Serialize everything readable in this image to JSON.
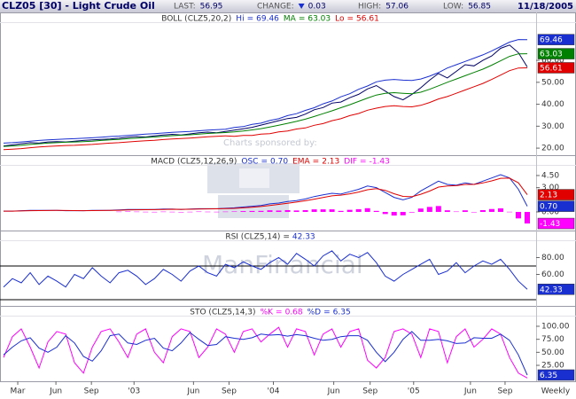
{
  "header": {
    "title": "CLZ05 [30] - Light Crude Oil",
    "fields": [
      {
        "label": "LAST:",
        "value": "56.95"
      },
      {
        "label": "CHANGE:",
        "value": "0.03",
        "direction": "down"
      },
      {
        "label": "HIGH:",
        "value": "57.06"
      },
      {
        "label": "LOW:",
        "value": "56.85"
      }
    ],
    "date": "11/18/2005"
  },
  "watermark": {
    "caption": "Charts sponsored by:",
    "brand": "ManFinancial"
  },
  "legend_separator": "=",
  "x_axis": {
    "xlim": [
      -0.2,
      59.8
    ],
    "label": "Weekly",
    "xticks": [
      {
        "value": 1.6,
        "label": "Mar"
      },
      {
        "value": 5.9,
        "label": "Jun"
      },
      {
        "value": 9.9,
        "label": "Sep"
      },
      {
        "value": 14.7,
        "label": "'03"
      },
      {
        "value": 21.4,
        "label": "Jun"
      },
      {
        "value": 25.4,
        "label": "Sep"
      },
      {
        "value": 30.4,
        "label": "'04"
      },
      {
        "value": 37.2,
        "label": "Jun"
      },
      {
        "value": 41.3,
        "label": "Sep"
      },
      {
        "value": 46.2,
        "label": "'05"
      },
      {
        "value": 52.6,
        "label": "Jun"
      },
      {
        "value": 56.5,
        "label": "Sep"
      }
    ]
  },
  "chart_data": [
    {
      "type": "line",
      "title": "BOLL (CLZ5,20,2)",
      "ylim": [
        16.8,
        77
      ],
      "yticks": [
        {
          "value": 20,
          "label": "20.00"
        },
        {
          "value": 30,
          "label": "30.00"
        },
        {
          "value": 40,
          "label": "40.00"
        },
        {
          "value": 50,
          "label": "50.00"
        },
        {
          "value": 60,
          "label": "60.00"
        }
      ],
      "series": [
        {
          "color": "#000066",
          "kind": "line",
          "values": [
            21.0,
            21.5,
            22.0,
            22.5,
            22.3,
            22.8,
            23.0,
            22.8,
            23.2,
            23.5,
            23.8,
            24.0,
            24.2,
            24.5,
            25.0,
            25.3,
            25.1,
            25.6,
            26.0,
            26.3,
            26.0,
            26.5,
            27.0,
            27.3,
            27.0,
            27.6,
            28.2,
            28.8,
            29.5,
            30.5,
            31.5,
            32.5,
            33.5,
            34.0,
            35.5,
            37.5,
            38.5,
            40.5,
            41.0,
            43.0,
            44.5,
            47.0,
            48.5,
            46.0,
            43.5,
            42.0,
            44.5,
            47.5,
            51.0,
            54.0,
            52.0,
            55.0,
            58.0,
            57.5,
            60.0,
            62.0,
            65.5,
            67.0,
            63.5,
            57.0
          ]
        },
        {
          "name": "Hi",
          "last_label": "69.46",
          "badge": true,
          "color": "#1a2fd0",
          "kind": "line",
          "values": [
            22.3,
            22.5,
            22.8,
            23.2,
            23.5,
            23.8,
            24.0,
            24.2,
            24.3,
            24.5,
            24.7,
            25.0,
            25.3,
            25.5,
            25.8,
            26.1,
            26.4,
            26.6,
            26.9,
            27.2,
            27.4,
            27.6,
            27.9,
            28.2,
            28.4,
            28.6,
            29.4,
            29.8,
            30.8,
            31.4,
            32.6,
            33.4,
            34.8,
            35.7,
            37.2,
            38.4,
            40.2,
            41.5,
            43.4,
            44.8,
            46.8,
            48.3,
            50.2,
            51.0,
            51.3,
            51.0,
            50.8,
            51.5,
            52.8,
            54.4,
            56.5,
            58.0,
            59.5,
            61.0,
            62.5,
            64.3,
            66.3,
            68.3,
            69.5,
            69.46
          ]
        },
        {
          "name": "MA",
          "last_label": "63.03",
          "badge": true,
          "color": "#008000",
          "kind": "line",
          "values": [
            20.8,
            21.0,
            21.3,
            21.7,
            22.0,
            22.3,
            22.5,
            22.7,
            22.8,
            23.0,
            23.2,
            23.5,
            23.8,
            24.0,
            24.3,
            24.6,
            24.9,
            25.1,
            25.4,
            25.7,
            25.9,
            26.1,
            26.4,
            26.7,
            26.9,
            27.1,
            27.4,
            27.8,
            28.3,
            28.9,
            29.6,
            30.4,
            31.3,
            32.2,
            33.2,
            34.4,
            35.7,
            37.0,
            38.4,
            39.8,
            41.3,
            42.8,
            44.2,
            45.0,
            45.3,
            45.0,
            44.8,
            45.5,
            46.8,
            48.4,
            50.0,
            51.5,
            53.0,
            54.5,
            56.0,
            57.8,
            59.8,
            61.8,
            63.0,
            63.03
          ]
        },
        {
          "name": "Lo",
          "last_label": "56.61",
          "badge": true,
          "color": "#e00000",
          "kind": "line",
          "values": [
            19.3,
            19.5,
            19.8,
            20.2,
            20.5,
            20.8,
            21.0,
            21.2,
            21.3,
            21.5,
            21.7,
            22.0,
            22.3,
            22.5,
            22.8,
            23.1,
            23.4,
            23.6,
            23.9,
            24.2,
            24.4,
            24.6,
            24.9,
            25.2,
            25.4,
            25.6,
            25.4,
            25.8,
            25.8,
            26.4,
            26.6,
            27.4,
            27.8,
            28.7,
            29.2,
            30.4,
            31.2,
            32.5,
            33.4,
            34.8,
            35.8,
            37.3,
            38.2,
            39.0,
            39.3,
            39.0,
            38.8,
            39.5,
            40.8,
            42.4,
            43.5,
            45.0,
            46.5,
            48.0,
            49.5,
            51.3,
            53.3,
            55.3,
            56.5,
            56.61
          ]
        }
      ]
    },
    {
      "type": "line",
      "title": "MACD (CLZ5,12,26,9)",
      "ylim": [
        -2.3,
        5.7
      ],
      "yticks": [
        {
          "value": 0,
          "label": "0.00"
        },
        {
          "value": 3,
          "label": "3.00"
        },
        {
          "value": 4.5,
          "label": "4.50"
        }
      ],
      "series": [
        {
          "name": "OSC",
          "last_label": "0.70",
          "badge": true,
          "color": "#1a2fd0",
          "kind": "line",
          "values": [
            0.1,
            0.1,
            0.15,
            0.2,
            0.2,
            0.2,
            0.2,
            0.15,
            0.15,
            0.15,
            0.2,
            0.2,
            0.2,
            0.25,
            0.3,
            0.3,
            0.3,
            0.3,
            0.35,
            0.35,
            0.3,
            0.35,
            0.4,
            0.4,
            0.4,
            0.45,
            0.5,
            0.6,
            0.7,
            0.8,
            1.0,
            1.1,
            1.3,
            1.4,
            1.6,
            1.9,
            2.1,
            2.3,
            2.2,
            2.5,
            2.8,
            3.2,
            3.0,
            2.4,
            1.8,
            1.5,
            1.8,
            2.6,
            3.2,
            3.8,
            3.4,
            3.3,
            3.6,
            3.4,
            3.8,
            4.2,
            4.6,
            4.2,
            2.8,
            0.7
          ]
        },
        {
          "name": "EMA",
          "last_label": "2.13",
          "badge": true,
          "color": "#e00000",
          "kind": "line",
          "values": [
            0.1,
            0.1,
            0.12,
            0.15,
            0.17,
            0.18,
            0.19,
            0.18,
            0.17,
            0.16,
            0.17,
            0.18,
            0.19,
            0.21,
            0.24,
            0.26,
            0.28,
            0.29,
            0.31,
            0.33,
            0.32,
            0.33,
            0.35,
            0.37,
            0.38,
            0.41,
            0.44,
            0.5,
            0.58,
            0.67,
            0.8,
            0.93,
            1.08,
            1.22,
            1.38,
            1.58,
            1.78,
            1.98,
            2.07,
            2.24,
            2.46,
            2.74,
            2.87,
            2.66,
            2.25,
            1.92,
            1.87,
            2.18,
            2.58,
            3.07,
            3.2,
            3.25,
            3.4,
            3.4,
            3.58,
            3.84,
            4.16,
            4.18,
            3.6,
            2.13
          ]
        },
        {
          "name": "DIF",
          "last_label": "-1.43",
          "badge": true,
          "color": "#ff00ff",
          "kind": "bar",
          "values": [
            null,
            null,
            null,
            null,
            null,
            null,
            null,
            null,
            null,
            null,
            null,
            null,
            null,
            0.04,
            0.06,
            0.04,
            0.02,
            0.01,
            0.04,
            0.02,
            -0.02,
            0.02,
            0.05,
            0.03,
            0.02,
            0.04,
            0.06,
            0.1,
            0.12,
            0.13,
            0.2,
            0.17,
            0.22,
            0.18,
            0.22,
            0.32,
            0.32,
            0.32,
            0.13,
            0.26,
            0.34,
            0.46,
            0.13,
            -0.26,
            -0.45,
            -0.42,
            -0.07,
            0.42,
            0.62,
            0.73,
            0.2,
            0.05,
            0.2,
            0.0,
            0.22,
            0.36,
            0.44,
            0.02,
            -0.8,
            -1.43
          ]
        }
      ]
    },
    {
      "type": "line",
      "title": "RSI (CLZ5,14)",
      "ylim": [
        22.6,
        99.5
      ],
      "levels": [
        70,
        30
      ],
      "yticks": [
        {
          "value": 60,
          "label": "60.00"
        },
        {
          "value": 80,
          "label": "80.00"
        }
      ],
      "series": [
        {
          "last_label": "42.33",
          "badge": true,
          "color": "#1a2fd0",
          "kind": "line",
          "values": [
            45,
            55,
            50,
            62,
            48,
            58,
            52,
            45,
            60,
            55,
            68,
            58,
            50,
            62,
            65,
            58,
            48,
            55,
            66,
            60,
            52,
            64,
            70,
            62,
            58,
            72,
            68,
            75,
            70,
            66,
            74,
            80,
            72,
            85,
            78,
            70,
            82,
            88,
            76,
            84,
            80,
            86,
            74,
            58,
            52,
            60,
            66,
            72,
            78,
            60,
            64,
            74,
            62,
            70,
            76,
            72,
            78,
            66,
            52,
            42.33
          ]
        }
      ]
    },
    {
      "type": "line",
      "title": "STO (CLZ5,14,3)",
      "ylim": [
        -5.6,
        118.7
      ],
      "yticks": [
        {
          "value": 25,
          "label": "25.00"
        },
        {
          "value": 50,
          "label": "50.00"
        },
        {
          "value": 75,
          "label": "75.00"
        },
        {
          "value": 100,
          "label": "100.00"
        }
      ],
      "series": [
        {
          "name": "%K",
          "last_label": "0.68",
          "badge": false,
          "color": "#ff00ff",
          "kind": "line",
          "values": [
            40,
            80,
            95,
            60,
            20,
            70,
            90,
            85,
            30,
            10,
            60,
            90,
            95,
            70,
            40,
            85,
            95,
            50,
            30,
            80,
            95,
            90,
            40,
            60,
            95,
            85,
            50,
            90,
            95,
            70,
            85,
            98,
            60,
            95,
            90,
            45,
            85,
            95,
            60,
            90,
            95,
            35,
            20,
            40,
            90,
            95,
            85,
            40,
            95,
            90,
            30,
            80,
            95,
            60,
            75,
            95,
            85,
            40,
            10,
            0.68
          ]
        },
        {
          "name": "%D",
          "last_label": "6.35",
          "badge": true,
          "color": "#1a2fd0",
          "kind": "line",
          "values": [
            45,
            60,
            72,
            78,
            58,
            50,
            60,
            82,
            68,
            42,
            33,
            53,
            82,
            85,
            68,
            65,
            73,
            77,
            58,
            53,
            68,
            88,
            75,
            63,
            65,
            80,
            77,
            75,
            78,
            85,
            83,
            84,
            81,
            84,
            82,
            77,
            73,
            75,
            80,
            82,
            82,
            73,
            50,
            32,
            50,
            75,
            90,
            73,
            73,
            75,
            72,
            67,
            68,
            78,
            77,
            77,
            85,
            73,
            45,
            6.35
          ]
        }
      ]
    }
  ]
}
